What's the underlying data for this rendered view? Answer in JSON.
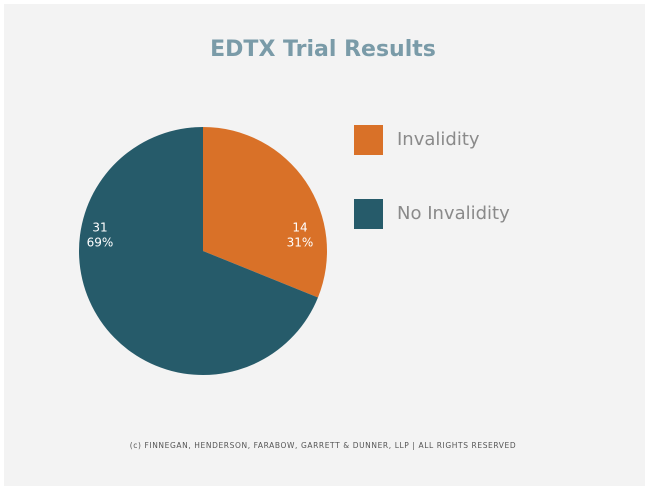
{
  "chart_data": {
    "type": "pie",
    "title": "EDTX Trial Results",
    "categories": [
      "Invalidity",
      "No Invalidity"
    ],
    "values": [
      14,
      31
    ],
    "percentages": [
      31,
      69
    ],
    "percentage_labels": [
      "31%",
      "69%"
    ],
    "colors": [
      "#d97128",
      "#265b6a"
    ],
    "legend": "right",
    "footer": "(c) FINNEGAN, HENDERSON, FARABOW, GARRETT & DUNNER, LLP | ALL RIGHTS RESERVED"
  }
}
